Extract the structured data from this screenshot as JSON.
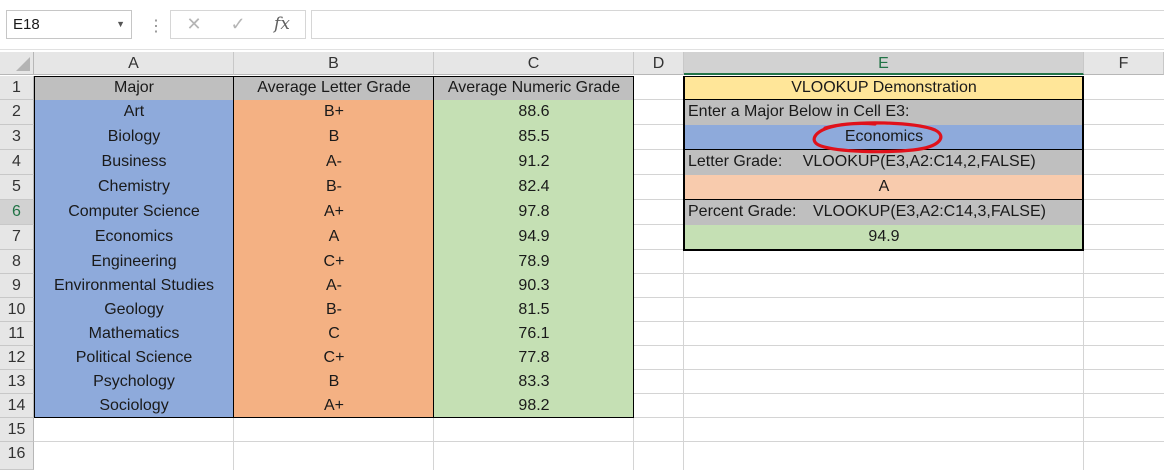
{
  "formula_bar": {
    "name_box": "E18",
    "cancel_icon": "✕",
    "enter_icon": "✓",
    "fx_label": "fx",
    "formula": ""
  },
  "columns": [
    "A",
    "B",
    "C",
    "D",
    "E",
    "F"
  ],
  "rows": [
    "1",
    "2",
    "3",
    "4",
    "5",
    "6",
    "7",
    "8",
    "9",
    "10",
    "11",
    "12",
    "13",
    "14",
    "15",
    "16"
  ],
  "selected": {
    "column": "E",
    "row": "6"
  },
  "table": {
    "headers": [
      "Major",
      "Average Letter Grade",
      "Average Numeric Grade"
    ],
    "rows": [
      [
        "Art",
        "B+",
        "88.6"
      ],
      [
        "Biology",
        "B",
        "85.5"
      ],
      [
        "Business",
        "A-",
        "91.2"
      ],
      [
        "Chemistry",
        "B-",
        "82.4"
      ],
      [
        "Computer Science",
        "A+",
        "97.8"
      ],
      [
        "Economics",
        "A",
        "94.9"
      ],
      [
        "Engineering",
        "C+",
        "78.9"
      ],
      [
        "Environmental Studies",
        "A-",
        "90.3"
      ],
      [
        "Geology",
        "B-",
        "81.5"
      ],
      [
        "Mathematics",
        "C",
        "76.1"
      ],
      [
        "Political Science",
        "C+",
        "77.8"
      ],
      [
        "Psychology",
        "B",
        "83.3"
      ],
      [
        "Sociology",
        "A+",
        "98.2"
      ]
    ]
  },
  "lookup": {
    "title": "VLOOKUP Demonstration",
    "prompt": "Enter a Major Below in Cell E3:",
    "input_value": "Economics",
    "letter_label": "Letter Grade:",
    "letter_formula": "VLOOKUP(E3,A2:C14,2,FALSE)",
    "letter_result": "A",
    "percent_label": "Percent Grade:",
    "percent_formula": "VLOOKUP(E3,A2:C14,3,FALSE)",
    "percent_result": "94.9"
  },
  "colors": {
    "major_fill": "#8eaadb",
    "letter_fill": "#f4b183",
    "numeric_fill": "#c5e0b4",
    "header_fill": "#bfbfbf",
    "title_fill": "#ffe699",
    "letter_result_fill": "#f8cbad",
    "percent_result_fill": "#c5e0b4",
    "annotation": "#e0111b",
    "selection": "#217346"
  }
}
